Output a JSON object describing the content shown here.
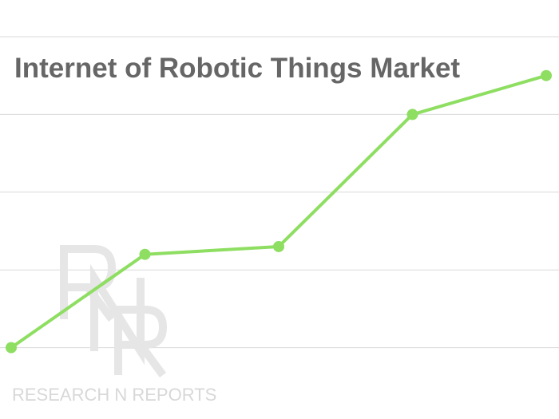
{
  "chart_data": {
    "type": "line",
    "title": "Internet of Robotic Things Market",
    "xlabel": "",
    "ylabel": "",
    "x": [
      1,
      2,
      3,
      4,
      5
    ],
    "series": [
      {
        "values": [
          1.0,
          2.2,
          2.3,
          4.0,
          4.5
        ]
      }
    ],
    "ylim": [
      0,
      5
    ],
    "grid": true,
    "legend": "none"
  },
  "colors": {
    "line": "#8ede62",
    "grid": "#d9d9d9",
    "title": "#666666",
    "watermark": "#e4e4e4"
  },
  "watermark": {
    "logo": "RNR",
    "text": "RESEARCH N REPORTS"
  }
}
